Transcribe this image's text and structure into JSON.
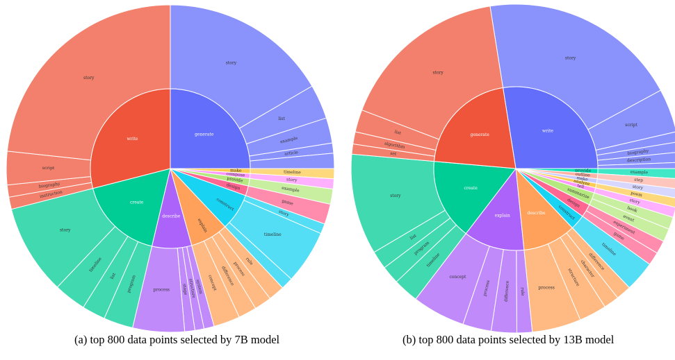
{
  "chart_data": [
    {
      "type": "sunburst",
      "caption": "(a) top 800 data points selected by 7B model",
      "start": "generate",
      "inner": [
        {
          "label": "generate",
          "value": 25,
          "color": "#636efa"
        },
        {
          "label": "make",
          "value": 1.0,
          "color": "#fecb52"
        },
        {
          "label": "compose",
          "value": 1.0,
          "color": "#ff97ff"
        },
        {
          "label": "provide",
          "value": 1.5,
          "color": "#b6e880"
        },
        {
          "label": "design",
          "value": 2.0,
          "color": "#ff6692"
        },
        {
          "label": "construct",
          "value": 7.5,
          "color": "#19d3f3"
        },
        {
          "label": "explain",
          "value": 7.7,
          "color": "#ffa15a"
        },
        {
          "label": "describe",
          "value": 8.0,
          "color": "#ab63fa"
        },
        {
          "label": "create",
          "value": 17.3,
          "color": "#00cc96"
        },
        {
          "label": "write",
          "value": 29,
          "color": "#ef553b"
        }
      ],
      "outer": [
        {
          "label": "story",
          "value": 16.6,
          "parent": "generate"
        },
        {
          "label": "list",
          "value": 3.4,
          "parent": "generate"
        },
        {
          "label": "example",
          "value": 2.5,
          "parent": "generate"
        },
        {
          "label": "article",
          "value": 1.0,
          "parent": "generate"
        },
        {
          "label": "",
          "value": 1.5,
          "parent": "generate"
        },
        {
          "label": "timeline",
          "value": 1.0,
          "parent": "make"
        },
        {
          "label": "story",
          "value": 1.0,
          "parent": "compose"
        },
        {
          "label": "example",
          "value": 1.5,
          "parent": "provide"
        },
        {
          "label": "game",
          "value": 2.0,
          "parent": "design"
        },
        {
          "label": "story",
          "value": 1.0,
          "parent": "construct"
        },
        {
          "label": "timeline",
          "value": 5.3,
          "parent": "construct"
        },
        {
          "label": "",
          "value": 1.2,
          "parent": "construct"
        },
        {
          "label": "rule",
          "value": 1.6,
          "parent": "explain"
        },
        {
          "label": "process",
          "value": 1.7,
          "parent": "explain"
        },
        {
          "label": "difference",
          "value": 1.8,
          "parent": "explain"
        },
        {
          "label": "concept",
          "value": 2.6,
          "parent": "explain"
        },
        {
          "label": "system",
          "value": 1.0,
          "parent": "describe"
        },
        {
          "label": "structure",
          "value": 0.9,
          "parent": "describe"
        },
        {
          "label": "stage",
          "value": 1.0,
          "parent": "describe"
        },
        {
          "label": "process",
          "value": 5.1,
          "parent": "describe"
        },
        {
          "label": "program",
          "value": 2.9,
          "parent": "create"
        },
        {
          "label": "list",
          "value": 2.3,
          "parent": "create"
        },
        {
          "label": "timeline",
          "value": 3.2,
          "parent": "create"
        },
        {
          "label": "story",
          "value": 8.9,
          "parent": "create"
        },
        {
          "label": "instruction",
          "value": 1.2,
          "parent": "write"
        },
        {
          "label": "biography",
          "value": 1.2,
          "parent": "write"
        },
        {
          "label": "script",
          "value": 3.3,
          "parent": "write"
        },
        {
          "label": "story",
          "value": 23.3,
          "parent": "write"
        }
      ]
    },
    {
      "type": "sunburst",
      "caption": "(b) top 800 data points selected by 13B model",
      "start": "write",
      "inner": [
        {
          "label": "write",
          "value": 27.5,
          "color": "#636efa"
        },
        {
          "label": "provide",
          "value": 1.0,
          "color": "#00e0b6"
        },
        {
          "label": "outline",
          "value": 1.0,
          "color": "#ffb3a7"
        },
        {
          "label": "make",
          "value": 0.9,
          "color": "#c9c9ff"
        },
        {
          "label": "analyze",
          "value": 0.9,
          "color": "#fecb52"
        },
        {
          "label": "tell",
          "value": 1.0,
          "color": "#ff97ff"
        },
        {
          "label": "summarize",
          "value": 2.5,
          "color": "#b6e880"
        },
        {
          "label": "design",
          "value": 2.6,
          "color": "#ff6692"
        },
        {
          "label": "construct",
          "value": 3.0,
          "color": "#19d3f3"
        },
        {
          "label": "describe",
          "value": 10.5,
          "color": "#ffa15a"
        },
        {
          "label": "explain",
          "value": 12.0,
          "color": "#ab63fa"
        },
        {
          "label": "create",
          "value": 16.0,
          "color": "#00cc96"
        },
        {
          "label": "generate",
          "value": 21.1,
          "color": "#ef553b"
        }
      ],
      "outer": [
        {
          "label": "story",
          "value": 19.6,
          "parent": "write"
        },
        {
          "label": "script",
          "value": 4.3,
          "parent": "write"
        },
        {
          "label": "",
          "value": 1.0,
          "parent": "write"
        },
        {
          "label": "biography",
          "value": 1.0,
          "parent": "write"
        },
        {
          "label": "description",
          "value": 1.0,
          "parent": "write"
        },
        {
          "label": "",
          "value": 0.6,
          "parent": "write"
        },
        {
          "label": "example",
          "value": 1.0,
          "parent": "provide"
        },
        {
          "label": "step",
          "value": 1.0,
          "parent": "outline"
        },
        {
          "label": "story",
          "value": 0.9,
          "parent": "make"
        },
        {
          "label": "poem",
          "value": 0.9,
          "parent": "analyze"
        },
        {
          "label": "story",
          "value": 1.0,
          "parent": "tell"
        },
        {
          "label": "book",
          "value": 1.2,
          "parent": "summarize"
        },
        {
          "label": "event",
          "value": 1.3,
          "parent": "summarize"
        },
        {
          "label": "experiment",
          "value": 1.3,
          "parent": "design"
        },
        {
          "label": "game",
          "value": 1.3,
          "parent": "design"
        },
        {
          "label": "timeline",
          "value": 3.0,
          "parent": "construct"
        },
        {
          "label": "difference",
          "value": 1.5,
          "parent": "describe"
        },
        {
          "label": "character",
          "value": 1.5,
          "parent": "describe"
        },
        {
          "label": "structure",
          "value": 2.7,
          "parent": "describe"
        },
        {
          "label": "process",
          "value": 4.8,
          "parent": "describe"
        },
        {
          "label": "rule",
          "value": 1.5,
          "parent": "explain"
        },
        {
          "label": "difference",
          "value": 2.5,
          "parent": "explain"
        },
        {
          "label": "process",
          "value": 2.8,
          "parent": "explain"
        },
        {
          "label": "concept",
          "value": 5.2,
          "parent": "explain"
        },
        {
          "label": "timeline",
          "value": 2.5,
          "parent": "create"
        },
        {
          "label": "program",
          "value": 1.8,
          "parent": "create"
        },
        {
          "label": "list",
          "value": 1.8,
          "parent": "create"
        },
        {
          "label": "story",
          "value": 9.9,
          "parent": "create"
        },
        {
          "label": "set",
          "value": 1.0,
          "parent": "generate"
        },
        {
          "label": "algorithm",
          "value": 1.2,
          "parent": "generate"
        },
        {
          "label": "list",
          "value": 2.2,
          "parent": "generate"
        },
        {
          "label": "story",
          "value": 16.7,
          "parent": "generate"
        }
      ]
    }
  ]
}
